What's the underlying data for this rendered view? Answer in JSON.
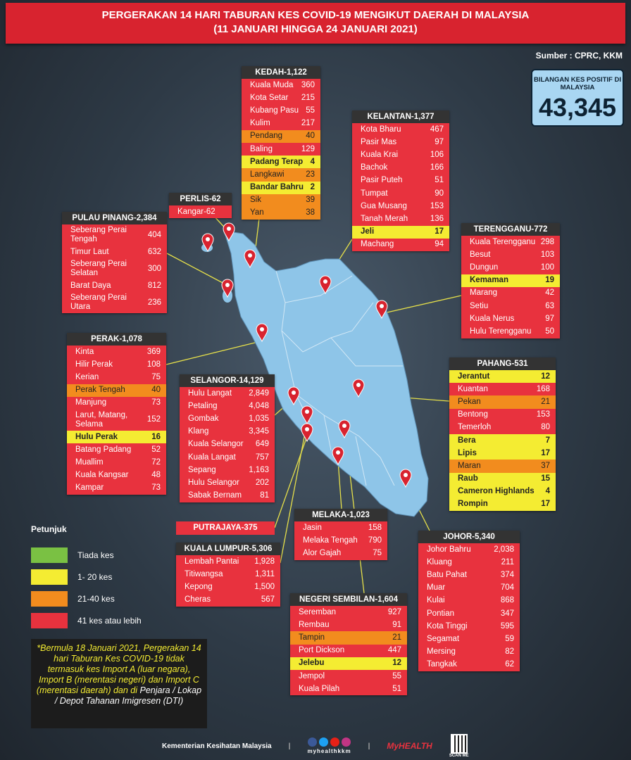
{
  "title": {
    "line1": "PERGERAKAN 14 HARI TABURAN KES COVID-19 MENGIKUT DAERAH DI MALAYSIA",
    "line2": "(11 JANUARI HINGGA 24 JANUARI 2021)"
  },
  "source": "Sumber : CPRC, KKM",
  "total": {
    "label": "BILANGAN KES POSITIF DI MALAYSIA",
    "value": "43,345"
  },
  "colors": {
    "red": "#e8323e",
    "orange": "#f28c1e",
    "yellow": "#f4ec32",
    "green": "#7ac143",
    "map": "#8ec5e8",
    "header": "#333333"
  },
  "states": [
    {
      "id": "kedah",
      "title": "KEDAH-1,122",
      "rows": [
        [
          "Kuala Muda",
          "360",
          "red"
        ],
        [
          "Kota Setar",
          "215",
          "red"
        ],
        [
          "Kubang Pasu",
          "55",
          "red"
        ],
        [
          "Kulim",
          "217",
          "red"
        ],
        [
          "Pendang",
          "40",
          "orange"
        ],
        [
          "Baling",
          "129",
          "red"
        ],
        [
          "Padang Terap",
          "4",
          "yellow"
        ],
        [
          "Langkawi",
          "23",
          "orange"
        ],
        [
          "Bandar Bahru",
          "2",
          "yellow"
        ],
        [
          "Sik",
          "39",
          "orange"
        ],
        [
          "Yan",
          "38",
          "orange"
        ]
      ]
    },
    {
      "id": "perlis",
      "title": "PERLIS-62",
      "rows": [
        [
          "Kangar-62",
          "",
          "red"
        ]
      ]
    },
    {
      "id": "pinang",
      "title": "PULAU PINANG-2,384",
      "rows": [
        [
          "Seberang Perai Tengah",
          "404",
          "red"
        ],
        [
          "Timur Laut",
          "632",
          "red"
        ],
        [
          "Seberang Perai Selatan",
          "300",
          "red"
        ],
        [
          "Barat Daya",
          "812",
          "red"
        ],
        [
          "Seberang Perai Utara",
          "236",
          "red"
        ]
      ]
    },
    {
      "id": "kelantan",
      "title": "KELANTAN-1,377",
      "rows": [
        [
          "Kota Bharu",
          "467",
          "red"
        ],
        [
          "Pasir Mas",
          "97",
          "red"
        ],
        [
          "Kuala Krai",
          "106",
          "red"
        ],
        [
          "Bachok",
          "166",
          "red"
        ],
        [
          "Pasir Puteh",
          "51",
          "red"
        ],
        [
          "Tumpat",
          "90",
          "red"
        ],
        [
          "Gua Musang",
          "153",
          "red"
        ],
        [
          "Tanah Merah",
          "136",
          "red"
        ],
        [
          "Jeli",
          "17",
          "yellow"
        ],
        [
          "Machang",
          "94",
          "red"
        ]
      ]
    },
    {
      "id": "terengganu",
      "title": "TERENGGANU-772",
      "rows": [
        [
          "Kuala Terengganu",
          "298",
          "red"
        ],
        [
          "Besut",
          "103",
          "red"
        ],
        [
          "Dungun",
          "100",
          "red"
        ],
        [
          "Kemaman",
          "19",
          "yellow"
        ],
        [
          "Marang",
          "42",
          "red"
        ],
        [
          "Setiu",
          "63",
          "red"
        ],
        [
          "Kuala Nerus",
          "97",
          "red"
        ],
        [
          "Hulu Terengganu",
          "50",
          "red"
        ]
      ]
    },
    {
      "id": "perak",
      "title": "PERAK-1,078",
      "rows": [
        [
          "Kinta",
          "369",
          "red"
        ],
        [
          "Hilir Perak",
          "108",
          "red"
        ],
        [
          "Kerian",
          "75",
          "red"
        ],
        [
          "Perak Tengah",
          "40",
          "orange"
        ],
        [
          "Manjung",
          "73",
          "red"
        ],
        [
          "Larut, Matang, Selama",
          "152",
          "red"
        ],
        [
          "Hulu Perak",
          "16",
          "yellow"
        ],
        [
          "Batang Padang",
          "52",
          "red"
        ],
        [
          "Muallim",
          "72",
          "red"
        ],
        [
          "Kuala Kangsar",
          "48",
          "red"
        ],
        [
          "Kampar",
          "73",
          "red"
        ]
      ]
    },
    {
      "id": "selangor",
      "title": "SELANGOR-14,129",
      "rows": [
        [
          "Hulu Langat",
          "2,849",
          "red"
        ],
        [
          "Petaling",
          "4,048",
          "red"
        ],
        [
          "Gombak",
          "1,035",
          "red"
        ],
        [
          "Klang",
          "3,345",
          "red"
        ],
        [
          "Kuala Selangor",
          "649",
          "red"
        ],
        [
          "Kuala Langat",
          "757",
          "red"
        ],
        [
          "Sepang",
          "1,163",
          "red"
        ],
        [
          "Hulu Selangor",
          "202",
          "red"
        ],
        [
          "Sabak Bernam",
          "81",
          "red"
        ]
      ]
    },
    {
      "id": "pahang",
      "title": "PAHANG-531",
      "rows": [
        [
          "Jerantut",
          "12",
          "yellow"
        ],
        [
          "Kuantan",
          "168",
          "red"
        ],
        [
          "Pekan",
          "21",
          "orange"
        ],
        [
          "Bentong",
          "153",
          "red"
        ],
        [
          "Temerloh",
          "80",
          "red"
        ],
        [
          "Bera",
          "7",
          "yellow"
        ],
        [
          "Lipis",
          "17",
          "yellow"
        ],
        [
          "Maran",
          "37",
          "orange"
        ],
        [
          "Raub",
          "15",
          "yellow"
        ],
        [
          "Cameron Highlands",
          "4",
          "yellow"
        ],
        [
          "Rompin",
          "17",
          "yellow"
        ]
      ]
    },
    {
      "id": "kl",
      "title": "KUALA LUMPUR-5,306",
      "rows": [
        [
          "Lembah Pantai",
          "1,928",
          "red"
        ],
        [
          "Titiwangsa",
          "1,311",
          "red"
        ],
        [
          "Kepong",
          "1,500",
          "red"
        ],
        [
          "Cheras",
          "567",
          "red"
        ]
      ]
    },
    {
      "id": "melaka",
      "title": "MELAKA-1,023",
      "rows": [
        [
          "Jasin",
          "158",
          "red"
        ],
        [
          "Melaka Tengah",
          "790",
          "red"
        ],
        [
          "Alor Gajah",
          "75",
          "red"
        ]
      ]
    },
    {
      "id": "ns",
      "title": "NEGERI SEMBILAN-1,604",
      "rows": [
        [
          "Seremban",
          "927",
          "red"
        ],
        [
          "Rembau",
          "91",
          "red"
        ],
        [
          "Tampin",
          "21",
          "orange"
        ],
        [
          "Port Dickson",
          "447",
          "red"
        ],
        [
          "Jelebu",
          "12",
          "yellow"
        ],
        [
          "Jempol",
          "55",
          "red"
        ],
        [
          "Kuala Pilah",
          "51",
          "red"
        ]
      ]
    },
    {
      "id": "johor",
      "title": "JOHOR-5,340",
      "rows": [
        [
          "Johor Bahru",
          "2,038",
          "red"
        ],
        [
          "Kluang",
          "211",
          "red"
        ],
        [
          "Batu Pahat",
          "374",
          "red"
        ],
        [
          "Muar",
          "704",
          "red"
        ],
        [
          "Kulai",
          "868",
          "red"
        ],
        [
          "Pontian",
          "347",
          "red"
        ],
        [
          "Kota Tinggi",
          "595",
          "red"
        ],
        [
          "Segamat",
          "59",
          "red"
        ],
        [
          "Mersing",
          "82",
          "red"
        ],
        [
          "Tangkak",
          "62",
          "red"
        ]
      ]
    }
  ],
  "putrajaya": "PUTRAJAYA-375",
  "legend": {
    "title": "Petunjuk",
    "items": [
      {
        "label": "Tiada kes",
        "color": "green"
      },
      {
        "label": "1- 20 kes",
        "color": "yellow"
      },
      {
        "label": "21-40 kes",
        "color": "orange"
      },
      {
        "label": "41 kes atau lebih",
        "color": "red"
      }
    ]
  },
  "note": {
    "yellow": "*Bermula 18 Januari 2021, Pergerakan 14 hari Taburan Kes COVID-19 tidak termasuk kes Import A (luar negara), Import B (merentasi negeri) dan Import C (merentasi daerah) dan di ",
    "white": "Penjara / Lokap / Depot Tahanan Imigresen (DTI)"
  },
  "footer": {
    "ministry": "Kementerian Kesihatan Malaysia",
    "handle": "myhealthkkm",
    "logo": "MyHEALTH",
    "qr": "SCAN ME"
  }
}
